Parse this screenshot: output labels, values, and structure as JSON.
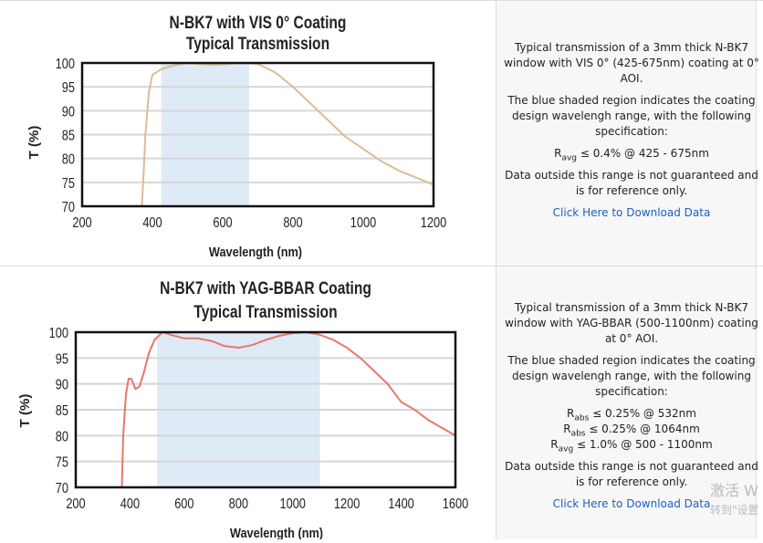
{
  "chart_data": [
    {
      "type": "line",
      "title": "N-BK7 with VIS 0° Coating",
      "subtitle": "Typical Transmission",
      "xlabel": "Wavelength (nm)",
      "ylabel": "T (%)",
      "xlim": [
        200,
        1200
      ],
      "ylim": [
        70,
        100
      ],
      "xticks": [
        "200",
        "400",
        "600",
        "800",
        "1000",
        "1200"
      ],
      "yticks": [
        "100",
        "95",
        "90",
        "85",
        "80",
        "75",
        "70"
      ],
      "grid": true,
      "line_color": "#d9be94",
      "shade_color": "#deeaf5",
      "shaded_range": [
        425,
        675
      ],
      "x": [
        370,
        375,
        380,
        390,
        400,
        425,
        450,
        500,
        550,
        580,
        650,
        700,
        750,
        800,
        850,
        900,
        950,
        1000,
        1050,
        1100,
        1150,
        1200
      ],
      "y": [
        70,
        77,
        85,
        94,
        97.5,
        98.7,
        99.3,
        100,
        99.7,
        99.6,
        100,
        99.8,
        98,
        95,
        91.5,
        88,
        84.5,
        82,
        79.5,
        77.5,
        76,
        74.5
      ]
    },
    {
      "type": "line",
      "title": "N-BK7 with YAG-BBAR Coating",
      "subtitle": "Typical Transmission",
      "xlabel": "Wavelength (nm)",
      "ylabel": "T (%)",
      "xlim": [
        200,
        1600
      ],
      "ylim": [
        70,
        100
      ],
      "xticks": [
        "200",
        "400",
        "600",
        "800",
        "1000",
        "1200",
        "1400",
        "1600"
      ],
      "yticks": [
        "100",
        "95",
        "90",
        "85",
        "80",
        "75",
        "70"
      ],
      "grid": true,
      "line_color": "#e8776a",
      "shade_color": "#deeaf5",
      "shaded_range": [
        500,
        1100
      ],
      "x": [
        370,
        375,
        385,
        395,
        405,
        420,
        435,
        450,
        470,
        490,
        520,
        550,
        600,
        650,
        700,
        750,
        800,
        850,
        900,
        950,
        1000,
        1050,
        1100,
        1150,
        1200,
        1250,
        1300,
        1350,
        1400,
        1450,
        1500,
        1550,
        1600
      ],
      "y": [
        70,
        80,
        88,
        91,
        91,
        89,
        89.5,
        92,
        96,
        98.5,
        100,
        99.5,
        98.8,
        98.8,
        98.3,
        97.3,
        97,
        97.5,
        98.5,
        99.3,
        99.8,
        100,
        99.5,
        98.5,
        97,
        95,
        92.5,
        90,
        86.5,
        85,
        83,
        81.5,
        80
      ]
    }
  ],
  "panels": [
    {
      "desc1": "Typical transmission of a 3mm thick N-BK7 window with VIS 0° (425-675nm) coating at 0° AOI.",
      "desc2": "The blue shaded region indicates the coating design wavelengh range, with the following specification:",
      "specs": [
        {
          "sym": "R",
          "sub": "avg",
          "text": " ≤ 0.4% @ 425 - 675nm"
        }
      ],
      "disclaimer": "Data outside this range is not guaranteed and is for reference only.",
      "download": "Click Here to Download Data"
    },
    {
      "desc1": "Typical transmission of a 3mm thick N-BK7 window with YAG-BBAR (500-1100nm) coating at 0° AOI.",
      "desc2": "The blue shaded region indicates the coating design wavelengh range, with the following specification:",
      "specs": [
        {
          "sym": "R",
          "sub": "abs",
          "text": " ≤ 0.25% @ 532nm"
        },
        {
          "sym": "R",
          "sub": "abs",
          "text": " ≤ 0.25% @ 1064nm"
        },
        {
          "sym": "R",
          "sub": "avg",
          "text": " ≤ 1.0% @ 500 - 1100nm"
        }
      ],
      "disclaimer": "Data outside this range is not guaranteed and is for reference only.",
      "download": "Click Here to Download Data"
    }
  ],
  "watermark": {
    "line1": "激活 W",
    "line2": "转到\"设置"
  }
}
